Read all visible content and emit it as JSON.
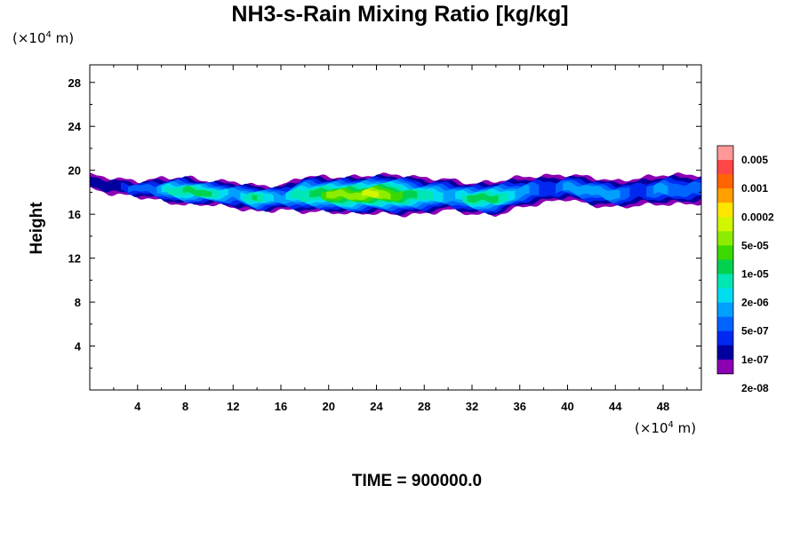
{
  "title": "NH3-s-Rain Mixing Ratio [kg/kg]",
  "y_unit_label": "(×10",
  "y_unit_exp": "4",
  "y_unit_tail": " m)",
  "x_unit_label": "(×10",
  "x_unit_exp": "4",
  "x_unit_tail": " m)",
  "footer": "TIME = 900000.0",
  "chart_data": {
    "type": "heatmap",
    "title": "NH3-s-Rain Mixing Ratio [kg/kg]",
    "xlabel": "",
    "ylabel": "Height",
    "xlim": [
      0,
      51.2
    ],
    "ylim": [
      0,
      29.6
    ],
    "x_ticks": [
      "4",
      "8",
      "12",
      "16",
      "20",
      "24",
      "28",
      "32",
      "36",
      "40",
      "44",
      "48"
    ],
    "y_ticks": [
      "4",
      "8",
      "12",
      "16",
      "20",
      "24",
      "28"
    ],
    "colorbar": {
      "labels": [
        "0.005",
        "0.001",
        "0.0002",
        "5e-05",
        "1e-05",
        "2e-06",
        "5e-07",
        "1e-07",
        "2e-08"
      ],
      "colors": [
        "#ff9999",
        "#ff4646",
        "#ff6400",
        "#ffa000",
        "#ffe600",
        "#d2f500",
        "#8ced00",
        "#3cd900",
        "#00d250",
        "#00e6b4",
        "#00dcf0",
        "#00a0ff",
        "#0064ff",
        "#0028f0",
        "#0000a0",
        "#8c00b4"
      ]
    },
    "field_profile": [
      {
        "x": 0,
        "bottom": 18.3,
        "top": 19.6,
        "peak": 2
      },
      {
        "x": 2,
        "bottom": 17.8,
        "top": 19.3,
        "peak": 3
      },
      {
        "x": 4,
        "bottom": 17.6,
        "top": 19.0,
        "peak": 4
      },
      {
        "x": 6,
        "bottom": 17.2,
        "top": 19.3,
        "peak": 6
      },
      {
        "x": 8,
        "bottom": 16.8,
        "top": 19.4,
        "peak": 9
      },
      {
        "x": 10,
        "bottom": 16.9,
        "top": 19.0,
        "peak": 8
      },
      {
        "x": 12,
        "bottom": 16.6,
        "top": 19.0,
        "peak": 6
      },
      {
        "x": 14,
        "bottom": 16.2,
        "top": 18.6,
        "peak": 8
      },
      {
        "x": 16,
        "bottom": 16.4,
        "top": 18.6,
        "peak": 6
      },
      {
        "x": 18,
        "bottom": 16.2,
        "top": 19.5,
        "peak": 8
      },
      {
        "x": 20,
        "bottom": 16.2,
        "top": 19.4,
        "peak": 10
      },
      {
        "x": 22,
        "bottom": 16.0,
        "top": 19.4,
        "peak": 11
      },
      {
        "x": 24,
        "bottom": 16.1,
        "top": 19.6,
        "peak": 11
      },
      {
        "x": 26,
        "bottom": 15.9,
        "top": 19.6,
        "peak": 10
      },
      {
        "x": 28,
        "bottom": 16.0,
        "top": 19.3,
        "peak": 7
      },
      {
        "x": 30,
        "bottom": 16.4,
        "top": 19.2,
        "peak": 6
      },
      {
        "x": 32,
        "bottom": 16.0,
        "top": 18.8,
        "peak": 8
      },
      {
        "x": 34,
        "bottom": 15.9,
        "top": 19.0,
        "peak": 9
      },
      {
        "x": 36,
        "bottom": 16.6,
        "top": 19.4,
        "peak": 5
      },
      {
        "x": 38,
        "bottom": 17.0,
        "top": 19.5,
        "peak": 4
      },
      {
        "x": 40,
        "bottom": 17.4,
        "top": 19.6,
        "peak": 5
      },
      {
        "x": 42,
        "bottom": 16.8,
        "top": 19.4,
        "peak": 6
      },
      {
        "x": 44,
        "bottom": 16.6,
        "top": 19.0,
        "peak": 5
      },
      {
        "x": 46,
        "bottom": 16.8,
        "top": 19.3,
        "peak": 4
      },
      {
        "x": 48,
        "bottom": 16.9,
        "top": 19.6,
        "peak": 5
      },
      {
        "x": 50,
        "bottom": 16.9,
        "top": 19.6,
        "peak": 5
      },
      {
        "x": 51.2,
        "bottom": 17.0,
        "top": 19.6,
        "peak": 4
      }
    ]
  }
}
